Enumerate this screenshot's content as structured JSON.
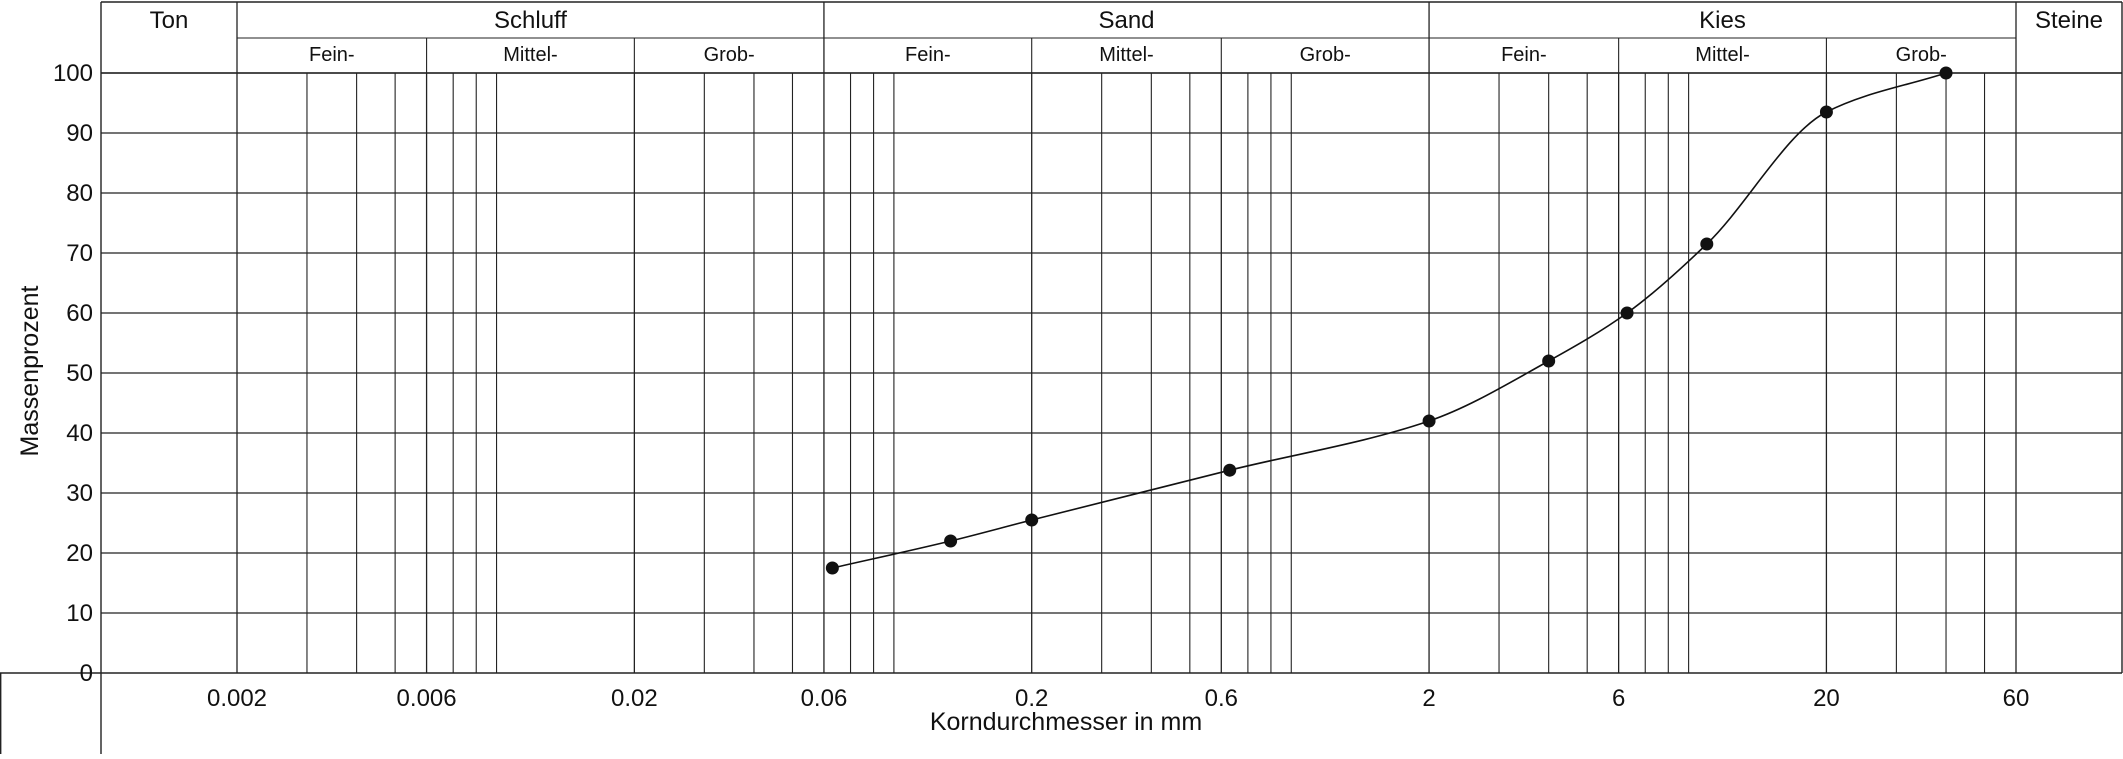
{
  "chart_data": {
    "type": "line",
    "title": "",
    "xlabel": "Korndurchmesser in mm",
    "ylabel": "Massenprozent",
    "x_scale": "log",
    "xlim": [
      0.0006,
      60
    ],
    "ylim": [
      0,
      100
    ],
    "grid": true,
    "x_ticks": [
      {
        "value": 0.002,
        "label": "0.002"
      },
      {
        "value": 0.006,
        "label": "0.006"
      },
      {
        "value": 0.02,
        "label": "0.02"
      },
      {
        "value": 0.06,
        "label": "0.06"
      },
      {
        "value": 0.2,
        "label": "0.2"
      },
      {
        "value": 0.6,
        "label": "0.6"
      },
      {
        "value": 2,
        "label": "2"
      },
      {
        "value": 6,
        "label": "6"
      },
      {
        "value": 20,
        "label": "20"
      },
      {
        "value": 60,
        "label": "60"
      }
    ],
    "y_ticks": [
      {
        "value": 0,
        "label": "0"
      },
      {
        "value": 10,
        "label": "10"
      },
      {
        "value": 20,
        "label": "20"
      },
      {
        "value": 30,
        "label": "30"
      },
      {
        "value": 40,
        "label": "40"
      },
      {
        "value": 50,
        "label": "50"
      },
      {
        "value": 60,
        "label": "60"
      },
      {
        "value": 70,
        "label": "70"
      },
      {
        "value": 80,
        "label": "80"
      },
      {
        "value": 90,
        "label": "90"
      },
      {
        "value": 100,
        "label": "100"
      }
    ],
    "minor_x_gridlines": [
      0.003,
      0.004,
      0.005,
      0.007,
      0.008,
      0.009,
      0.03,
      0.04,
      0.05,
      0.07,
      0.08,
      0.09,
      0.3,
      0.4,
      0.5,
      0.7,
      0.8,
      0.9,
      3,
      4,
      5,
      7,
      8,
      9,
      30,
      40,
      50
    ],
    "soil_classes": [
      {
        "name": "Ton",
        "from": 0.0006,
        "to": 0.002,
        "subdivisions": []
      },
      {
        "name": "Schluff",
        "from": 0.002,
        "to": 0.06,
        "subdivisions": [
          {
            "name": "Fein-",
            "from": 0.002,
            "to": 0.006
          },
          {
            "name": "Mittel-",
            "from": 0.006,
            "to": 0.02
          },
          {
            "name": "Grob-",
            "from": 0.02,
            "to": 0.06
          }
        ]
      },
      {
        "name": "Sand",
        "from": 0.06,
        "to": 2,
        "subdivisions": [
          {
            "name": "Fein-",
            "from": 0.06,
            "to": 0.2
          },
          {
            "name": "Mittel-",
            "from": 0.2,
            "to": 0.6
          },
          {
            "name": "Grob-",
            "from": 0.6,
            "to": 2
          }
        ]
      },
      {
        "name": "Kies",
        "from": 2,
        "to": 60,
        "subdivisions": [
          {
            "name": "Fein-",
            "from": 2,
            "to": 6
          },
          {
            "name": "Mittel-",
            "from": 6,
            "to": 20
          },
          {
            "name": "Grob-",
            "from": 20,
            "to": 60
          }
        ]
      },
      {
        "name": "Steine",
        "from": 60,
        "to": 160,
        "subdivisions": []
      }
    ],
    "series": [
      {
        "points": [
          {
            "x": 0.063,
            "y": 17.5
          },
          {
            "x": 0.125,
            "y": 22
          },
          {
            "x": 0.2,
            "y": 25.5
          },
          {
            "x": 0.63,
            "y": 33.8
          },
          {
            "x": 2,
            "y": 42
          },
          {
            "x": 4,
            "y": 52
          },
          {
            "x": 6.3,
            "y": 60
          },
          {
            "x": 10,
            "y": 71.5
          },
          {
            "x": 20,
            "y": 93.5
          },
          {
            "x": 40,
            "y": 100
          }
        ]
      }
    ],
    "colors": {
      "line": "#111111",
      "grid": "#222222",
      "marker": "#111111"
    }
  }
}
